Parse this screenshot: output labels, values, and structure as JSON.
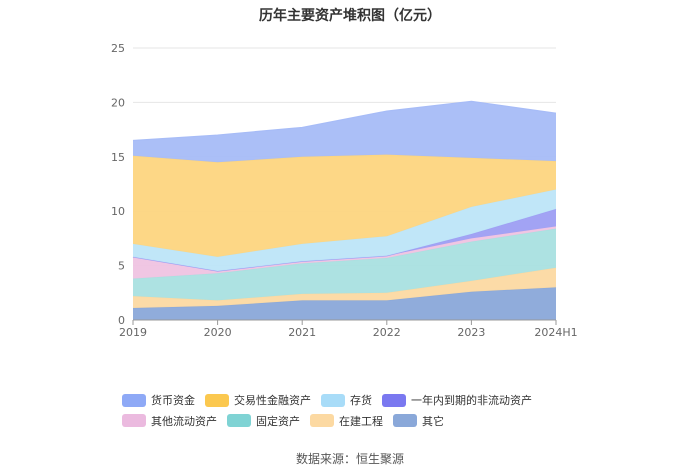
{
  "chart_data": {
    "type": "area",
    "stacked": true,
    "title": "历年主要资产堆积图（亿元）",
    "categories": [
      "2019",
      "2020",
      "2021",
      "2022",
      "2023",
      "2024H1"
    ],
    "ylim": [
      0,
      25
    ],
    "yticks": [
      "0",
      "5",
      "10",
      "15",
      "20",
      "25"
    ],
    "series": [
      {
        "name": "其它",
        "color": "#8aa8d9",
        "values": [
          1.1,
          1.3,
          1.8,
          1.8,
          2.6,
          3.0
        ]
      },
      {
        "name": "在建工程",
        "color": "#fcd9a2",
        "values": [
          1.1,
          0.5,
          0.6,
          0.7,
          1.0,
          1.8
        ]
      },
      {
        "name": "固定资产",
        "color": "#a9e0e0",
        "values": [
          1.6,
          2.5,
          2.8,
          3.2,
          3.6,
          3.6
        ]
      },
      {
        "name": "其他流动资产",
        "color": "#efc3e2",
        "values": [
          2.0,
          0.2,
          0.2,
          0.2,
          0.3,
          0.2
        ]
      },
      {
        "name": "一年内到期的非流动资产",
        "color": "#9d9ef3",
        "values": [
          0.0,
          0.0,
          0.0,
          0.0,
          0.4,
          1.6
        ]
      },
      {
        "name": "存货",
        "color": "#bde5f8",
        "values": [
          1.2,
          1.3,
          1.6,
          1.8,
          2.5,
          1.8
        ]
      },
      {
        "name": "交易性金融资产",
        "color": "#fdd57f",
        "values": [
          8.1,
          8.7,
          8.0,
          7.5,
          4.5,
          2.6
        ]
      },
      {
        "name": "货币资金",
        "color": "#a7bcf7",
        "values": [
          1.4,
          2.5,
          2.7,
          4.0,
          5.2,
          4.4
        ]
      }
    ]
  },
  "legend": {
    "items": [
      {
        "label": "货币资金",
        "color": "#8ea9f6"
      },
      {
        "label": "交易性金融资产",
        "color": "#fbc84f"
      },
      {
        "label": "存货",
        "color": "#a8dcf8"
      },
      {
        "label": "一年内到期的非流动资产",
        "color": "#7a78f0"
      },
      {
        "label": "其他流动资产",
        "color": "#ebbadf"
      },
      {
        "label": "固定资产",
        "color": "#7fd3d4"
      },
      {
        "label": "在建工程",
        "color": "#fcd9a2"
      },
      {
        "label": "其它",
        "color": "#8aa8d9"
      }
    ]
  },
  "source": "数据来源：恒生聚源"
}
